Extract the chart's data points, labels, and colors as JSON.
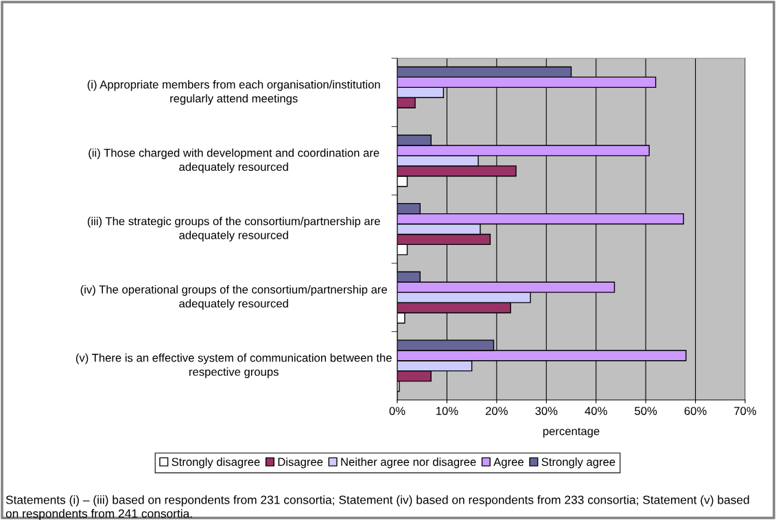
{
  "chart_data": {
    "type": "bar",
    "orientation": "horizontal",
    "categories": [
      "(i) Appropriate members from each organisation/institution regularly attend meetings",
      "(ii) Those charged with development and coordination are adequately resourced",
      "(iii) The strategic groups of the consortium/partnership are adequately resourced",
      "(iv) The operational groups of the consortium/partnership are adequately resourced",
      "(v) There is an effective system of communication between the respective groups"
    ],
    "series": [
      {
        "name": "Strongly disagree",
        "color": "#ffffff",
        "values": [
          null,
          2.0,
          2.0,
          1.5,
          0.4
        ]
      },
      {
        "name": "Disagree",
        "color": "#993366",
        "values": [
          3.6,
          23.9,
          18.7,
          22.8,
          6.8
        ]
      },
      {
        "name": "Neither agree nor disagree",
        "color": "#ccccff",
        "values": [
          9.3,
          16.3,
          16.7,
          26.8,
          15.0
        ]
      },
      {
        "name": "Agree",
        "color": "#cc99ff",
        "values": [
          52,
          50.7,
          57.6,
          43.7,
          58.1
        ]
      },
      {
        "name": "Strongly agree",
        "color": "#666699",
        "values": [
          35,
          6.8,
          4.6,
          4.6,
          19.4
        ]
      }
    ],
    "xlabel": "percentage",
    "xlim": [
      0,
      70
    ],
    "xticks": [
      {
        "value": 0,
        "label": "0%"
      },
      {
        "value": 10,
        "label": "10%"
      },
      {
        "value": 20,
        "label": "20%"
      },
      {
        "value": 30,
        "label": "30%"
      },
      {
        "value": 40,
        "label": "40%"
      },
      {
        "value": 50,
        "label": "50%"
      },
      {
        "value": 60,
        "label": "60%"
      },
      {
        "value": 70,
        "label": "70%"
      }
    ],
    "grid": "x",
    "legend": "bottom",
    "annotations": [
      "Statements (i) – (iii) based on respondents from 231 consortia; Statement (iv) based on respondents from 233 consortia; Statement (v) based on respondents from 241 consortia."
    ]
  }
}
